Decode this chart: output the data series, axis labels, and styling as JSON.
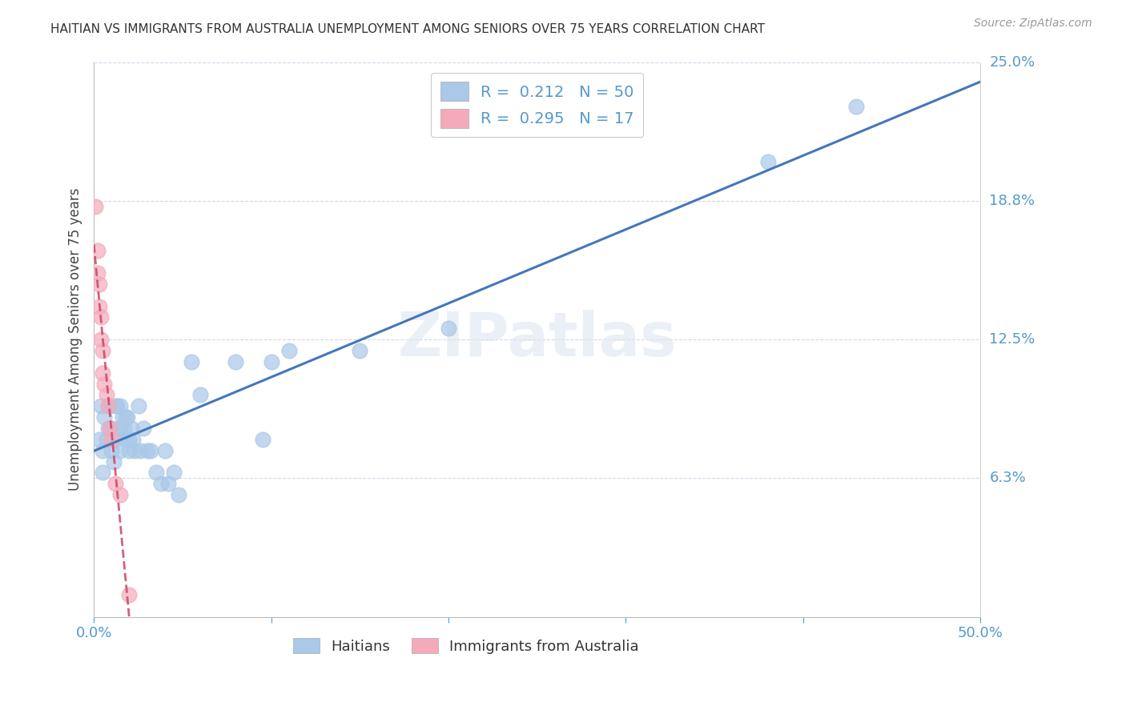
{
  "title": "HAITIAN VS IMMIGRANTS FROM AUSTRALIA UNEMPLOYMENT AMONG SENIORS OVER 75 YEARS CORRELATION CHART",
  "source": "Source: ZipAtlas.com",
  "ylabel": "Unemployment Among Seniors over 75 years",
  "xlim": [
    0,
    0.5
  ],
  "ylim": [
    0,
    0.25
  ],
  "ytick_lines": [
    0.0625,
    0.125,
    0.1875,
    0.25
  ],
  "ytick_labels": [
    "6.3%",
    "12.5%",
    "18.8%",
    "25.0%"
  ],
  "watermark": "ZIPatlas",
  "haitian_color": "#aac8e8",
  "australia_color": "#f5aaba",
  "haitian_line_color": "#4477bb",
  "australia_line_color": "#cc4466",
  "axis_color": "#5599cc",
  "grid_color": "#d0d8e8",
  "haitian_x": [
    0.003,
    0.004,
    0.005,
    0.005,
    0.006,
    0.007,
    0.008,
    0.008,
    0.009,
    0.01,
    0.01,
    0.011,
    0.012,
    0.012,
    0.013,
    0.014,
    0.015,
    0.015,
    0.015,
    0.016,
    0.017,
    0.018,
    0.018,
    0.019,
    0.02,
    0.02,
    0.021,
    0.022,
    0.023,
    0.025,
    0.026,
    0.028,
    0.03,
    0.032,
    0.035,
    0.038,
    0.04,
    0.042,
    0.045,
    0.048,
    0.055,
    0.06,
    0.08,
    0.095,
    0.1,
    0.11,
    0.15,
    0.2,
    0.38,
    0.43
  ],
  "haitian_y": [
    0.08,
    0.095,
    0.075,
    0.065,
    0.09,
    0.08,
    0.095,
    0.085,
    0.095,
    0.085,
    0.075,
    0.07,
    0.095,
    0.08,
    0.095,
    0.085,
    0.095,
    0.085,
    0.075,
    0.09,
    0.085,
    0.09,
    0.08,
    0.09,
    0.08,
    0.075,
    0.085,
    0.08,
    0.075,
    0.095,
    0.075,
    0.085,
    0.075,
    0.075,
    0.065,
    0.06,
    0.075,
    0.06,
    0.065,
    0.055,
    0.115,
    0.1,
    0.115,
    0.08,
    0.115,
    0.12,
    0.12,
    0.13,
    0.205,
    0.23
  ],
  "australia_x": [
    0.001,
    0.002,
    0.002,
    0.003,
    0.003,
    0.004,
    0.004,
    0.005,
    0.005,
    0.006,
    0.007,
    0.008,
    0.009,
    0.01,
    0.012,
    0.015,
    0.02
  ],
  "australia_y": [
    0.185,
    0.165,
    0.155,
    0.15,
    0.14,
    0.135,
    0.125,
    0.12,
    0.11,
    0.105,
    0.1,
    0.095,
    0.085,
    0.08,
    0.06,
    0.055,
    0.01
  ],
  "haitian_R": 0.212,
  "australia_R": 0.295,
  "haitian_N": 50,
  "australia_N": 17
}
